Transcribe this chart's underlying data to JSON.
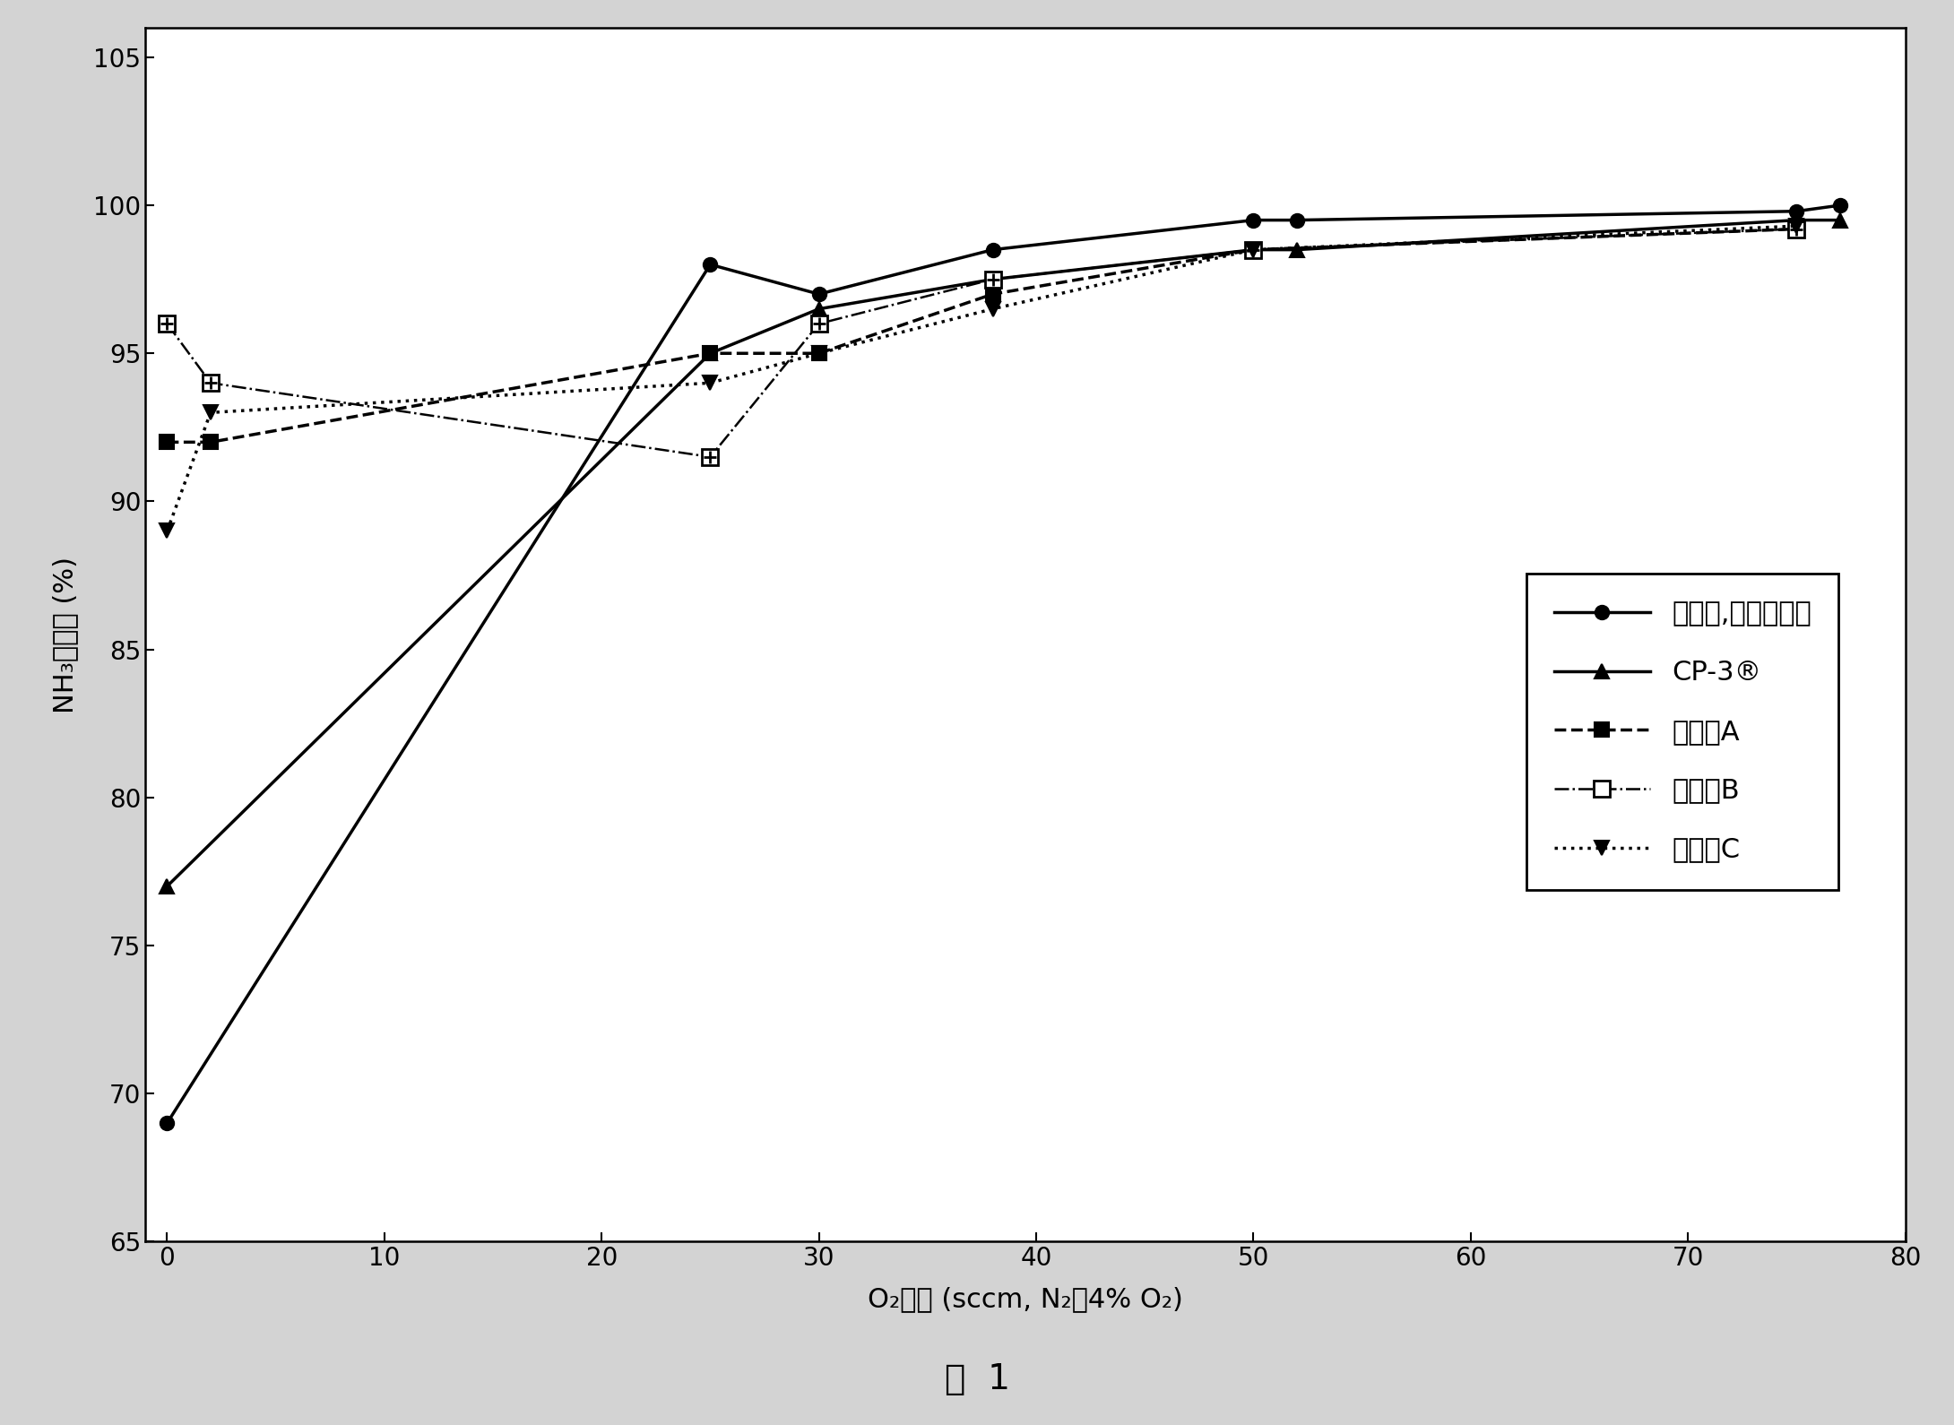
{
  "series": {
    "catalyst_no_additive": {
      "x": [
        0,
        25,
        30,
        38,
        50,
        52,
        75,
        77
      ],
      "y": [
        69,
        98,
        97,
        98.5,
        99.5,
        99.5,
        99.8,
        100
      ],
      "label": "偃化剂,没有添加剂",
      "linestyle": "-",
      "marker": "o",
      "color": "#000000",
      "linewidth": 2.5,
      "markersize": 11
    },
    "cp3": {
      "x": [
        0,
        25,
        30,
        38,
        50,
        52,
        75,
        77
      ],
      "y": [
        77,
        95,
        96.5,
        97.5,
        98.5,
        98.5,
        99.5,
        99.5
      ],
      "label": "CP-3®",
      "linestyle": "-",
      "marker": "^",
      "color": "#000000",
      "linewidth": 2.5,
      "markersize": 11
    },
    "additive_a": {
      "x": [
        0,
        2,
        25,
        30,
        38,
        50,
        75
      ],
      "y": [
        92,
        92,
        95,
        95,
        97,
        98.5,
        99.2
      ],
      "label": "添加剂A",
      "linestyle": "--",
      "marker": "s",
      "color": "#000000",
      "linewidth": 2.5,
      "markersize": 11
    },
    "additive_b": {
      "x": [
        0,
        2,
        25,
        30,
        38,
        50,
        75
      ],
      "y": [
        96,
        94,
        91.5,
        96,
        97.5,
        98.5,
        99.2
      ],
      "label": "添加剂B",
      "linestyle": "-.",
      "marker": "s",
      "color": "#000000",
      "linewidth": 1.8,
      "markersize": 13,
      "markerfacecolor": "white",
      "markeredgewidth": 2.0
    },
    "additive_c": {
      "x": [
        0,
        2,
        25,
        30,
        38,
        50,
        75
      ],
      "y": [
        89,
        93,
        94,
        95,
        96.5,
        98.5,
        99.3
      ],
      "label": "添加剂C",
      "linestyle": ":",
      "marker": "v",
      "color": "#000000",
      "linewidth": 2.5,
      "markersize": 11
    }
  },
  "xlim": [
    -1,
    80
  ],
  "ylim": [
    65,
    106
  ],
  "xticks": [
    0,
    10,
    20,
    30,
    40,
    50,
    60,
    70,
    80
  ],
  "yticks": [
    65,
    70,
    75,
    80,
    85,
    90,
    95,
    100,
    105
  ],
  "xlabel": "O₂流量 (sccm, N₂中4% O₂)",
  "ylabel": "NH₃转化率 (%)",
  "figure_title": "图  1",
  "background_color": "#d3d3d3",
  "axes_facecolor": "#ffffff",
  "plot_bg": "#d3d3d3"
}
